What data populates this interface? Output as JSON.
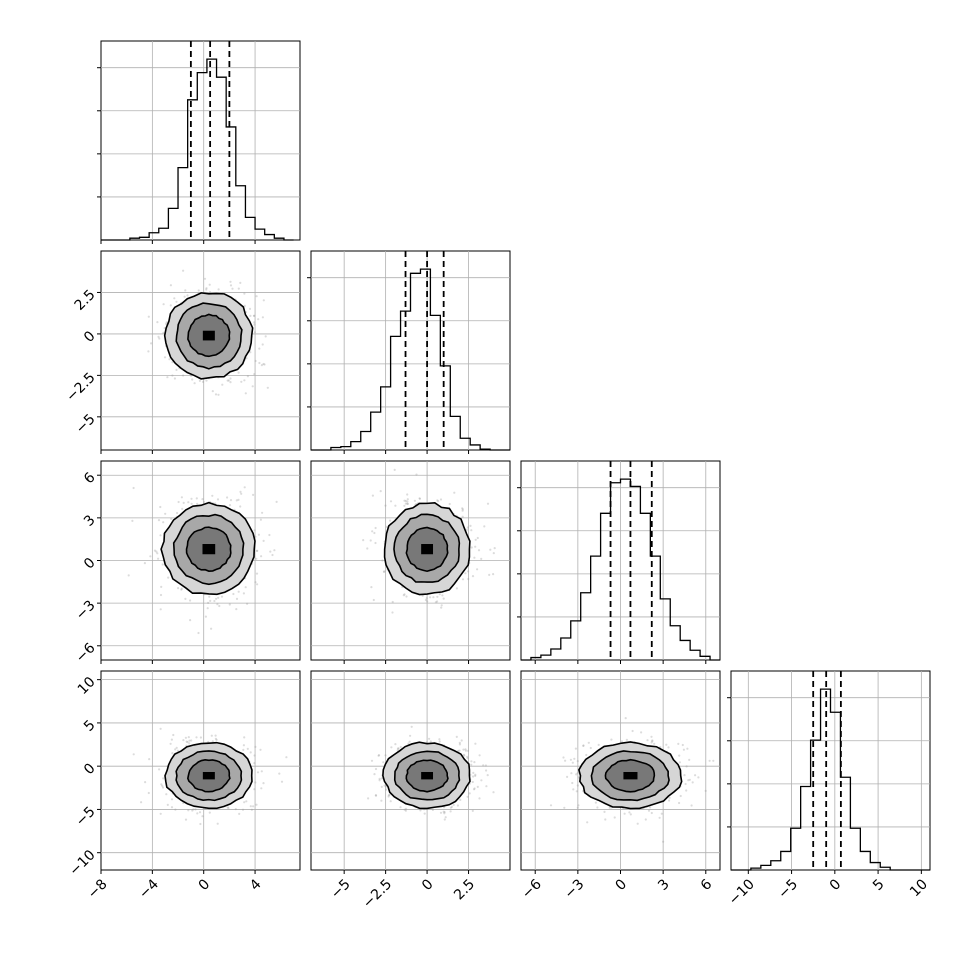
{
  "chart_data": {
    "type": "corner",
    "grid": true,
    "parameters": [
      {
        "index": 0,
        "ticks": [
          -8,
          -4,
          0,
          4
        ],
        "range": [
          -8,
          7.5
        ],
        "histogram": {
          "edges": [
            -8,
            -7.25,
            -6.5,
            -5.75,
            -5,
            -4.25,
            -3.5,
            -2.75,
            -2,
            -1.25,
            -0.5,
            0.25,
            1,
            1.75,
            2.5,
            3.25,
            4,
            4.75,
            5.5,
            6.25,
            7
          ],
          "counts": [
            0,
            0,
            0,
            2,
            3,
            8,
            13,
            35,
            80,
            155,
            185,
            200,
            180,
            125,
            60,
            25,
            12,
            6,
            2,
            0
          ]
        },
        "quantiles": [
          -1.0,
          0.5,
          2.0
        ]
      },
      {
        "index": 1,
        "ticks": [
          -5.0,
          -2.5,
          0.0,
          2.5
        ],
        "range": [
          -7,
          5
        ],
        "histogram": {
          "edges": [
            -7,
            -6.4,
            -5.8,
            -5.2,
            -4.6,
            -4,
            -3.4,
            -2.8,
            -2.2,
            -1.6,
            -1,
            -0.4,
            0.2,
            0.8,
            1.4,
            2,
            2.6,
            3.2,
            3.8,
            4.4,
            5
          ],
          "counts": [
            0,
            0,
            3,
            4,
            10,
            22,
            45,
            75,
            135,
            165,
            210,
            215,
            160,
            100,
            40,
            14,
            6,
            1,
            0,
            0
          ]
        },
        "quantiles": [
          -1.3,
          0.0,
          1.0
        ]
      },
      {
        "index": 2,
        "ticks": [
          -6,
          -3,
          0,
          3,
          6
        ],
        "range": [
          -7,
          7
        ],
        "histogram": {
          "edges": [
            -7,
            -6.3,
            -5.6,
            -4.9,
            -4.2,
            -3.5,
            -2.8,
            -2.1,
            -1.4,
            -0.7,
            0,
            0.7,
            1.4,
            2.1,
            2.8,
            3.5,
            4.2,
            4.9,
            5.6,
            6.3,
            7
          ],
          "counts": [
            0,
            2,
            4,
            9,
            18,
            32,
            55,
            85,
            120,
            145,
            148,
            142,
            120,
            85,
            50,
            28,
            16,
            8,
            3,
            0
          ]
        },
        "quantiles": [
          -0.7,
          0.7,
          2.2
        ]
      },
      {
        "index": 3,
        "ticks": [
          -10,
          -5,
          0,
          5,
          10
        ],
        "range": [
          -12,
          11
        ],
        "histogram": {
          "edges": [
            -12,
            -10.85,
            -9.7,
            -8.55,
            -7.4,
            -6.25,
            -5.1,
            -3.95,
            -2.8,
            -1.65,
            -0.5,
            0.65,
            1.8,
            2.95,
            4.1,
            5.25,
            6.4,
            7.55,
            8.7,
            9.85,
            11
          ],
          "counts": [
            0,
            0,
            2,
            5,
            10,
            20,
            45,
            90,
            140,
            195,
            170,
            100,
            45,
            20,
            8,
            3,
            0,
            0,
            0,
            0
          ]
        },
        "quantiles": [
          -2.5,
          -1.0,
          0.7
        ]
      }
    ],
    "pairs": [
      {
        "row": 1,
        "col": 0,
        "center": [
          0.4,
          -0.1
        ],
        "sigma": [
          1.7,
          1.3
        ]
      },
      {
        "row": 2,
        "col": 0,
        "center": [
          0.4,
          0.8
        ],
        "sigma": [
          1.8,
          1.6
        ]
      },
      {
        "row": 2,
        "col": 1,
        "center": [
          0.0,
          0.8
        ],
        "sigma": [
          1.3,
          1.6
        ]
      },
      {
        "row": 3,
        "col": 0,
        "center": [
          0.4,
          -1.1
        ],
        "sigma": [
          1.7,
          1.9
        ]
      },
      {
        "row": 3,
        "col": 1,
        "center": [
          0.0,
          -1.1
        ],
        "sigma": [
          1.3,
          1.9
        ]
      },
      {
        "row": 3,
        "col": 2,
        "center": [
          0.7,
          -1.1
        ],
        "sigma": [
          1.8,
          1.9
        ]
      }
    ]
  }
}
